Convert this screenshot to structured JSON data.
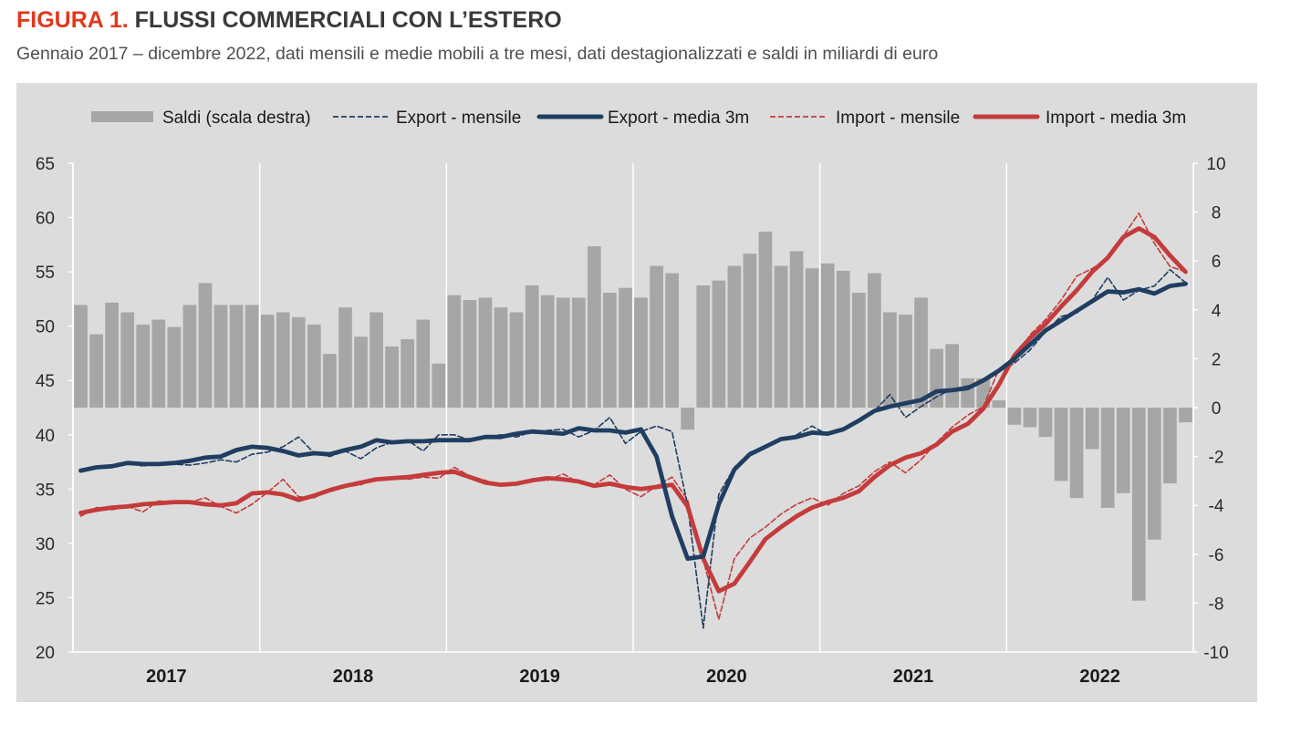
{
  "header": {
    "figure_label": "FIGURA 1.",
    "title": "FLUSSI COMMERCIALI CON L’ESTERO",
    "subtitle": "Gennaio 2017 – dicembre 2022, dati mensili e medie mobili a tre mesi, dati destagionalizzati e saldi in miliardi di euro"
  },
  "chart_data": {
    "type": "bar+line",
    "title": "FLUSSI COMMERCIALI CON L’ESTERO",
    "subtitle": "Gennaio 2017 – dicembre 2022, dati mensili e medie mobili a tre mesi, dati destagionalizzati e saldi in miliardi di euro",
    "x_period": "Gennaio 2017 – dicembre 2022, mensile",
    "year_labels": [
      "2017",
      "2018",
      "2019",
      "2020",
      "2021",
      "2022"
    ],
    "left_axis": {
      "min": 20,
      "max": 65,
      "ticks": [
        "20",
        "25",
        "30",
        "35",
        "40",
        "45",
        "50",
        "55",
        "60",
        "65"
      ]
    },
    "right_axis": {
      "min": -10,
      "max": 10,
      "ticks": [
        "-10",
        "-8",
        "-6",
        "-4",
        "-2",
        "0",
        "2",
        "4",
        "6",
        "8",
        "10"
      ]
    },
    "grid": false,
    "legend_position": "top",
    "legend": [
      "Saldi (scala destra)",
      "Export - mensile",
      "Export - media 3m",
      "Import - mensile",
      "Import - media 3m"
    ],
    "colors": {
      "bars": "#a6a6a6",
      "export": "#1f3e61",
      "import": "#c43b3b",
      "background": "#dcdcdc"
    },
    "series": [
      {
        "name": "Saldi (scala destra)",
        "type": "bar",
        "axis": "right",
        "values": [
          4.2,
          3.0,
          4.3,
          3.9,
          3.4,
          3.6,
          3.3,
          4.2,
          5.1,
          4.2,
          4.2,
          4.2,
          3.8,
          3.9,
          3.7,
          3.4,
          2.2,
          4.1,
          2.9,
          3.9,
          2.5,
          2.8,
          3.6,
          1.8,
          4.6,
          4.4,
          4.5,
          4.1,
          3.9,
          5.0,
          4.6,
          4.5,
          4.5,
          6.6,
          4.7,
          4.9,
          4.5,
          5.8,
          5.5,
          -0.9,
          5.0,
          5.2,
          5.8,
          6.3,
          7.2,
          5.8,
          6.4,
          5.7,
          5.9,
          5.6,
          4.7,
          5.5,
          3.9,
          3.8,
          4.5,
          2.4,
          2.6,
          1.2,
          1.2,
          0.3,
          -0.7,
          -0.8,
          -1.2,
          -3.0,
          -3.7,
          -1.7,
          -4.1,
          -3.5,
          -7.9,
          -5.4,
          -3.1,
          -0.6
        ]
      },
      {
        "name": "Export - mensile",
        "type": "line",
        "axis": "left",
        "values": [
          36.8,
          36.9,
          37.0,
          37.5,
          37.1,
          37.4,
          37.3,
          37.2,
          37.4,
          37.7,
          37.5,
          38.2,
          38.4,
          38.9,
          39.8,
          38.3,
          38.0,
          38.5,
          37.8,
          38.8,
          39.3,
          39.5,
          38.5,
          40.0,
          40.0,
          39.5,
          39.8,
          40.0,
          39.8,
          40.3,
          40.4,
          40.5,
          39.8,
          40.4,
          41.6,
          39.2,
          40.3,
          40.8,
          40.3,
          33.5,
          22.2,
          34.5,
          37.0,
          38.4,
          38.8,
          39.5,
          40.0,
          40.8,
          40.0,
          40.4,
          41.4,
          42.2,
          43.7,
          41.6,
          42.6,
          43.5,
          44.2,
          44.5,
          44.9,
          45.8,
          46.6,
          47.8,
          49.5,
          50.9,
          51.2,
          52.4,
          54.5,
          52.4,
          53.3,
          53.7,
          55.2,
          54.0
        ]
      },
      {
        "name": "Export - media 3m",
        "type": "line",
        "axis": "left",
        "values": [
          36.7,
          37.0,
          37.1,
          37.4,
          37.3,
          37.3,
          37.4,
          37.6,
          37.9,
          38.0,
          38.6,
          38.9,
          38.8,
          38.5,
          38.1,
          38.3,
          38.2,
          38.6,
          38.9,
          39.5,
          39.3,
          39.4,
          39.4,
          39.5,
          39.5,
          39.5,
          39.8,
          39.8,
          40.1,
          40.3,
          40.2,
          40.1,
          40.6,
          40.4,
          40.4,
          40.2,
          40.5,
          38.0,
          32.5,
          28.6,
          28.8,
          33.6,
          36.8,
          38.2,
          38.9,
          39.6,
          39.8,
          40.2,
          40.1,
          40.5,
          41.3,
          42.2,
          42.6,
          42.9,
          43.2,
          44.0,
          44.1,
          44.3,
          45.0,
          45.9,
          47.0,
          48.3,
          49.6,
          50.5,
          51.4,
          52.3,
          53.2,
          53.1,
          53.4,
          53.0,
          53.7,
          53.9
        ]
      },
      {
        "name": "Import - mensile",
        "type": "line",
        "axis": "left",
        "values": [
          32.5,
          33.3,
          33.1,
          33.4,
          32.9,
          33.9,
          33.8,
          33.8,
          34.2,
          33.4,
          32.8,
          33.6,
          34.7,
          35.9,
          34.3,
          34.2,
          35.0,
          35.2,
          35.4,
          36.0,
          36.1,
          35.9,
          36.1,
          36.0,
          37.0,
          36.2,
          35.8,
          35.3,
          35.4,
          35.8,
          35.8,
          36.4,
          35.6,
          35.4,
          36.3,
          35.0,
          34.3,
          35.3,
          36.1,
          34.0,
          28.5,
          23.0,
          28.6,
          30.5,
          31.5,
          32.7,
          33.6,
          34.2,
          33.5,
          34.6,
          35.3,
          36.6,
          37.5,
          36.5,
          37.7,
          39.3,
          40.7,
          41.8,
          42.6,
          46.0,
          46.7,
          49.2,
          50.6,
          52.4,
          54.6,
          55.3,
          56.2,
          58.3,
          60.4,
          57.6,
          55.5,
          55.0
        ]
      },
      {
        "name": "Import - media 3m",
        "type": "line",
        "axis": "left",
        "values": [
          32.8,
          33.1,
          33.3,
          33.4,
          33.6,
          33.7,
          33.8,
          33.8,
          33.6,
          33.5,
          33.7,
          34.6,
          34.7,
          34.5,
          34.0,
          34.4,
          34.9,
          35.3,
          35.6,
          35.9,
          36.0,
          36.1,
          36.3,
          36.5,
          36.6,
          36.1,
          35.6,
          35.4,
          35.5,
          35.8,
          36.0,
          35.9,
          35.7,
          35.3,
          35.5,
          35.2,
          35.0,
          35.2,
          35.4,
          33.4,
          28.6,
          25.6,
          26.3,
          28.3,
          30.4,
          31.5,
          32.5,
          33.3,
          33.8,
          34.2,
          34.8,
          36.1,
          37.2,
          37.9,
          38.3,
          39.1,
          40.3,
          41.0,
          42.4,
          44.6,
          47.3,
          48.9,
          50.2,
          51.8,
          53.3,
          55.0,
          56.3,
          58.2,
          59.0,
          58.2,
          56.5,
          55.0
        ]
      }
    ]
  }
}
